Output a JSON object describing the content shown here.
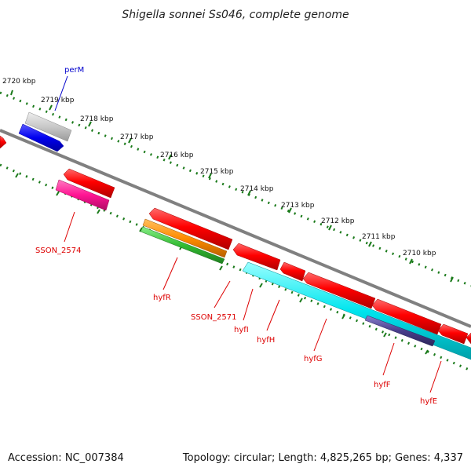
{
  "title": "Shigella sonnei Ss046, complete genome",
  "accession": "Accession: NC_007384",
  "topology_line": "Topology: circular; Length: 4,825,265 bp; Genes: 4,337",
  "kbp_ticks": [
    "2720 kbp",
    "2719 kbp",
    "2718 kbp",
    "2717 kbp",
    "2716 kbp",
    "2715 kbp",
    "2714 kbp",
    "2713 kbp",
    "2712 kbp",
    "2711 kbp",
    "2710 kbp"
  ],
  "gene_labels": {
    "perM": "perM",
    "SSON_2574": "SSON_2574",
    "hyfR": "hyfR",
    "SSON_2571": "SSON_2571",
    "hyfI": "hyfI",
    "hyfH": "hyfH",
    "hyfG": "hyfG",
    "hyfF": "hyfF",
    "hyfE": "hyfE"
  },
  "colors": {
    "backbone": "#808080",
    "tick_dots": "#1a7a1a",
    "cds_red": "#ff0000",
    "gene_grey": "#c8c8c8",
    "gene_blue": "#0000ee",
    "gene_pink": "#ff1493",
    "gene_orange": "#ff8c00",
    "gene_green": "#33bb33",
    "gene_cyan": "#00e5ee",
    "gene_navy": "#483d8b",
    "label_red": "#dd0000",
    "label_blue": "#0000cc"
  }
}
